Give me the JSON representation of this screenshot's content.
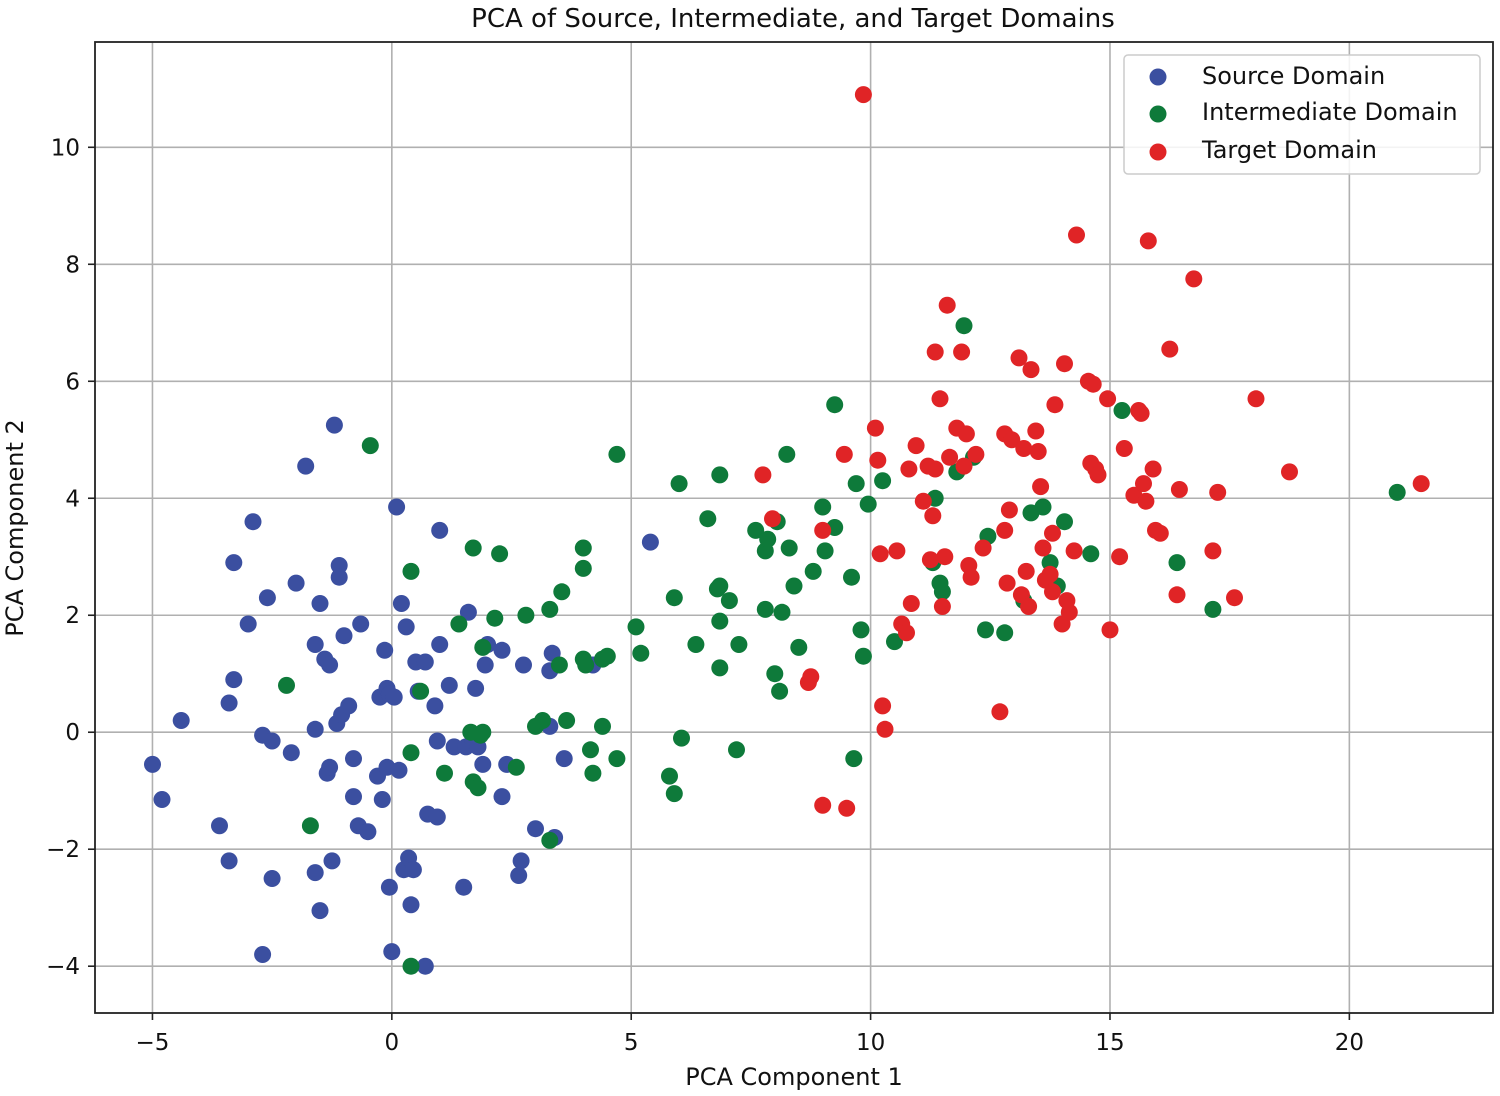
{
  "chart_data": {
    "type": "scatter",
    "title": "PCA of Source, Intermediate, and Target Domains",
    "xlabel": "PCA Component 1",
    "ylabel": "PCA Component 2",
    "xlim": [
      -6.2,
      23.0
    ],
    "ylim": [
      -4.8,
      11.8
    ],
    "xticks": [
      -5,
      0,
      5,
      10,
      15,
      20
    ],
    "yticks": [
      -4,
      -2,
      0,
      2,
      4,
      6,
      8,
      10
    ],
    "xtick_labels": [
      "−5",
      "0",
      "5",
      "10",
      "15",
      "20"
    ],
    "ytick_labels": [
      "−4",
      "−2",
      "0",
      "2",
      "4",
      "6",
      "8",
      "10"
    ],
    "grid": true,
    "legend_position": "top-right",
    "series": [
      {
        "name": "Source Domain",
        "color": "#3b4fa0",
        "points": [
          [
            -5.0,
            -0.55
          ],
          [
            -4.8,
            -1.15
          ],
          [
            -4.4,
            0.2
          ],
          [
            -3.6,
            -1.6
          ],
          [
            -3.4,
            -2.2
          ],
          [
            -3.4,
            0.5
          ],
          [
            -3.3,
            0.9
          ],
          [
            -3.3,
            2.9
          ],
          [
            -3.0,
            1.85
          ],
          [
            -2.9,
            3.6
          ],
          [
            -2.7,
            -3.8
          ],
          [
            -2.7,
            -0.05
          ],
          [
            -2.6,
            2.3
          ],
          [
            -2.5,
            -0.15
          ],
          [
            -2.5,
            -2.5
          ],
          [
            -2.1,
            -0.35
          ],
          [
            -2.0,
            2.55
          ],
          [
            -1.8,
            4.55
          ],
          [
            -1.6,
            1.5
          ],
          [
            -1.6,
            0.05
          ],
          [
            -1.6,
            -2.4
          ],
          [
            -1.5,
            2.2
          ],
          [
            -1.5,
            -3.05
          ],
          [
            -1.4,
            1.25
          ],
          [
            -1.35,
            -0.7
          ],
          [
            -1.3,
            -0.6
          ],
          [
            -1.3,
            1.15
          ],
          [
            -1.25,
            -2.2
          ],
          [
            -1.2,
            5.25
          ],
          [
            -1.15,
            0.15
          ],
          [
            -1.1,
            2.85
          ],
          [
            -1.1,
            2.65
          ],
          [
            -1.05,
            0.3
          ],
          [
            -1.0,
            1.65
          ],
          [
            -0.9,
            0.45
          ],
          [
            -0.8,
            -0.45
          ],
          [
            -0.8,
            -1.1
          ],
          [
            -0.7,
            -1.6
          ],
          [
            -0.65,
            1.85
          ],
          [
            -0.5,
            -1.7
          ],
          [
            -0.3,
            -0.75
          ],
          [
            -0.25,
            0.6
          ],
          [
            -0.2,
            -1.15
          ],
          [
            -0.15,
            1.4
          ],
          [
            -0.1,
            0.75
          ],
          [
            -0.05,
            0.65
          ],
          [
            -0.1,
            -0.6
          ],
          [
            -0.05,
            -2.65
          ],
          [
            0.0,
            -3.75
          ],
          [
            0.05,
            0.6
          ],
          [
            0.1,
            3.85
          ],
          [
            0.15,
            -0.65
          ],
          [
            0.2,
            2.2
          ],
          [
            0.25,
            -2.35
          ],
          [
            0.3,
            1.8
          ],
          [
            0.35,
            -2.15
          ],
          [
            0.4,
            -2.95
          ],
          [
            0.45,
            -2.35
          ],
          [
            0.5,
            1.2
          ],
          [
            0.55,
            0.7
          ],
          [
            0.7,
            -4.0
          ],
          [
            0.7,
            1.2
          ],
          [
            0.75,
            -1.4
          ],
          [
            0.9,
            0.45
          ],
          [
            0.95,
            -1.45
          ],
          [
            0.95,
            -0.15
          ],
          [
            1.0,
            1.5
          ],
          [
            1.0,
            3.45
          ],
          [
            1.2,
            0.8
          ],
          [
            1.3,
            -0.25
          ],
          [
            1.5,
            -2.65
          ],
          [
            1.55,
            -0.25
          ],
          [
            1.6,
            2.05
          ],
          [
            1.7,
            -0.15
          ],
          [
            1.75,
            0.75
          ],
          [
            1.8,
            -0.25
          ],
          [
            1.9,
            -0.55
          ],
          [
            1.95,
            1.15
          ],
          [
            2.0,
            1.5
          ],
          [
            2.3,
            1.4
          ],
          [
            2.3,
            -1.1
          ],
          [
            2.4,
            -0.55
          ],
          [
            2.65,
            -2.45
          ],
          [
            2.7,
            -2.2
          ],
          [
            2.75,
            1.15
          ],
          [
            3.0,
            -1.65
          ],
          [
            3.3,
            0.1
          ],
          [
            3.3,
            1.05
          ],
          [
            3.35,
            1.35
          ],
          [
            3.4,
            -1.8
          ],
          [
            3.6,
            -0.45
          ],
          [
            4.2,
            1.15
          ],
          [
            5.4,
            3.25
          ]
        ]
      },
      {
        "name": "Intermediate Domain",
        "color": "#0e7a3a",
        "points": [
          [
            -2.2,
            0.8
          ],
          [
            -1.7,
            -1.6
          ],
          [
            -0.45,
            4.9
          ],
          [
            0.4,
            -4.0
          ],
          [
            0.4,
            -0.35
          ],
          [
            0.4,
            2.75
          ],
          [
            0.6,
            0.7
          ],
          [
            1.1,
            -0.7
          ],
          [
            1.4,
            1.85
          ],
          [
            1.65,
            0.0
          ],
          [
            1.7,
            -0.85
          ],
          [
            1.7,
            3.15
          ],
          [
            1.8,
            -0.95
          ],
          [
            1.85,
            -0.05
          ],
          [
            1.9,
            1.45
          ],
          [
            1.9,
            0.0
          ],
          [
            2.15,
            1.95
          ],
          [
            2.25,
            3.05
          ],
          [
            2.6,
            -0.6
          ],
          [
            2.8,
            2.0
          ],
          [
            3.0,
            0.1
          ],
          [
            3.15,
            0.2
          ],
          [
            3.3,
            -1.85
          ],
          [
            3.3,
            2.1
          ],
          [
            3.5,
            1.15
          ],
          [
            3.55,
            2.4
          ],
          [
            3.65,
            0.2
          ],
          [
            4.0,
            3.15
          ],
          [
            4.0,
            2.8
          ],
          [
            4.0,
            1.25
          ],
          [
            4.05,
            1.15
          ],
          [
            4.15,
            -0.3
          ],
          [
            4.2,
            -0.7
          ],
          [
            4.4,
            1.25
          ],
          [
            4.4,
            0.1
          ],
          [
            4.5,
            1.3
          ],
          [
            4.7,
            -0.45
          ],
          [
            4.7,
            4.75
          ],
          [
            5.1,
            1.8
          ],
          [
            5.2,
            1.35
          ],
          [
            5.8,
            -0.75
          ],
          [
            5.9,
            -1.05
          ],
          [
            5.9,
            2.3
          ],
          [
            6.0,
            4.25
          ],
          [
            6.05,
            -0.1
          ],
          [
            6.35,
            1.5
          ],
          [
            6.6,
            3.65
          ],
          [
            6.8,
            2.45
          ],
          [
            6.85,
            4.4
          ],
          [
            6.85,
            2.5
          ],
          [
            6.85,
            1.9
          ],
          [
            6.85,
            1.1
          ],
          [
            7.05,
            2.25
          ],
          [
            7.2,
            -0.3
          ],
          [
            7.25,
            1.5
          ],
          [
            7.6,
            3.45
          ],
          [
            7.8,
            2.1
          ],
          [
            7.8,
            3.1
          ],
          [
            7.85,
            3.3
          ],
          [
            8.0,
            1.0
          ],
          [
            8.05,
            3.6
          ],
          [
            8.1,
            0.7
          ],
          [
            8.15,
            2.05
          ],
          [
            8.25,
            4.75
          ],
          [
            8.3,
            3.15
          ],
          [
            8.4,
            2.5
          ],
          [
            8.5,
            1.45
          ],
          [
            8.8,
            2.75
          ],
          [
            9.0,
            3.85
          ],
          [
            9.05,
            3.1
          ],
          [
            9.25,
            3.5
          ],
          [
            9.25,
            5.6
          ],
          [
            9.6,
            2.65
          ],
          [
            9.65,
            -0.45
          ],
          [
            9.7,
            4.25
          ],
          [
            9.8,
            1.75
          ],
          [
            9.85,
            1.3
          ],
          [
            9.95,
            3.9
          ],
          [
            10.25,
            4.3
          ],
          [
            10.5,
            1.55
          ],
          [
            11.3,
            2.9
          ],
          [
            11.35,
            4.0
          ],
          [
            11.45,
            2.55
          ],
          [
            11.5,
            2.4
          ],
          [
            11.8,
            4.45
          ],
          [
            11.95,
            6.95
          ],
          [
            12.15,
            4.7
          ],
          [
            12.4,
            1.75
          ],
          [
            12.45,
            3.35
          ],
          [
            12.8,
            1.7
          ],
          [
            13.2,
            2.25
          ],
          [
            13.35,
            3.75
          ],
          [
            13.6,
            3.85
          ],
          [
            13.75,
            2.9
          ],
          [
            13.9,
            2.5
          ],
          [
            14.05,
            3.6
          ],
          [
            14.6,
            3.05
          ],
          [
            15.25,
            5.5
          ],
          [
            16.4,
            2.9
          ],
          [
            17.15,
            2.1
          ],
          [
            21.0,
            4.1
          ]
        ]
      },
      {
        "name": "Target Domain",
        "color": "#e02426",
        "points": [
          [
            7.75,
            4.4
          ],
          [
            7.95,
            3.65
          ],
          [
            8.7,
            0.85
          ],
          [
            8.75,
            0.95
          ],
          [
            9.0,
            -1.25
          ],
          [
            9.0,
            3.45
          ],
          [
            9.45,
            4.75
          ],
          [
            9.5,
            -1.3
          ],
          [
            9.85,
            10.9
          ],
          [
            10.1,
            5.2
          ],
          [
            10.15,
            4.65
          ],
          [
            10.2,
            3.05
          ],
          [
            10.25,
            0.45
          ],
          [
            10.3,
            0.05
          ],
          [
            10.55,
            3.1
          ],
          [
            10.65,
            1.85
          ],
          [
            10.75,
            1.7
          ],
          [
            10.8,
            4.5
          ],
          [
            10.85,
            2.2
          ],
          [
            10.95,
            4.9
          ],
          [
            11.1,
            3.95
          ],
          [
            11.2,
            4.55
          ],
          [
            11.25,
            2.95
          ],
          [
            11.3,
            3.7
          ],
          [
            11.35,
            4.5
          ],
          [
            11.35,
            6.5
          ],
          [
            11.45,
            5.7
          ],
          [
            11.5,
            2.15
          ],
          [
            11.55,
            3.0
          ],
          [
            11.6,
            7.3
          ],
          [
            11.65,
            4.7
          ],
          [
            11.8,
            5.2
          ],
          [
            11.9,
            6.5
          ],
          [
            11.95,
            4.55
          ],
          [
            12.0,
            5.1
          ],
          [
            12.05,
            2.85
          ],
          [
            12.1,
            2.65
          ],
          [
            12.2,
            4.75
          ],
          [
            12.35,
            3.15
          ],
          [
            12.7,
            0.35
          ],
          [
            12.8,
            3.45
          ],
          [
            12.8,
            5.1
          ],
          [
            12.85,
            2.55
          ],
          [
            12.9,
            3.8
          ],
          [
            12.95,
            5.0
          ],
          [
            13.1,
            6.4
          ],
          [
            13.15,
            2.35
          ],
          [
            13.2,
            4.85
          ],
          [
            13.25,
            2.75
          ],
          [
            13.3,
            2.15
          ],
          [
            13.35,
            6.2
          ],
          [
            13.45,
            5.15
          ],
          [
            13.5,
            4.8
          ],
          [
            13.55,
            4.2
          ],
          [
            13.6,
            3.15
          ],
          [
            13.65,
            2.6
          ],
          [
            13.75,
            2.7
          ],
          [
            13.8,
            2.4
          ],
          [
            13.8,
            3.4
          ],
          [
            13.85,
            5.6
          ],
          [
            14.0,
            1.85
          ],
          [
            14.05,
            6.3
          ],
          [
            14.1,
            2.25
          ],
          [
            14.15,
            2.05
          ],
          [
            14.25,
            3.1
          ],
          [
            14.3,
            8.5
          ],
          [
            14.55,
            6.0
          ],
          [
            14.6,
            4.6
          ],
          [
            14.65,
            5.95
          ],
          [
            14.7,
            4.5
          ],
          [
            14.75,
            4.4
          ],
          [
            14.95,
            5.7
          ],
          [
            15.0,
            1.75
          ],
          [
            15.2,
            3.0
          ],
          [
            15.3,
            4.85
          ],
          [
            15.5,
            4.05
          ],
          [
            15.6,
            5.5
          ],
          [
            15.65,
            5.45
          ],
          [
            15.7,
            4.25
          ],
          [
            15.75,
            3.95
          ],
          [
            15.8,
            8.4
          ],
          [
            15.9,
            4.5
          ],
          [
            15.95,
            3.45
          ],
          [
            16.05,
            3.4
          ],
          [
            16.25,
            6.55
          ],
          [
            16.4,
            2.35
          ],
          [
            16.45,
            4.15
          ],
          [
            16.75,
            7.75
          ],
          [
            17.15,
            3.1
          ],
          [
            17.25,
            4.1
          ],
          [
            17.6,
            2.3
          ],
          [
            18.05,
            5.7
          ],
          [
            18.75,
            4.45
          ],
          [
            21.5,
            4.25
          ]
        ]
      }
    ]
  }
}
